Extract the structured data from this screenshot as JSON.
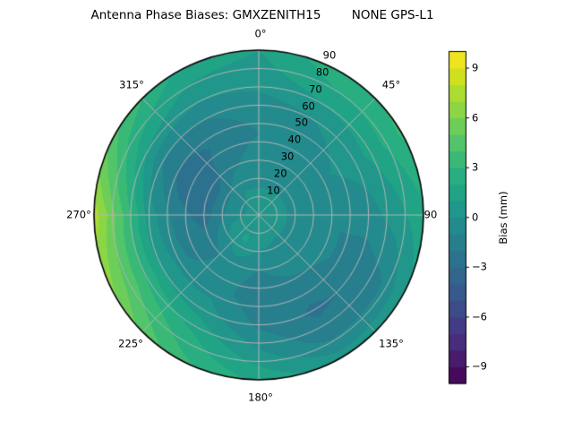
{
  "figure": {
    "title": "Antenna Phase Biases: GMXZENITH15        NONE GPS-L1"
  },
  "chart_data": {
    "type": "heatmap",
    "projection": "polar",
    "title": "Antenna Phase Biases: GMXZENITH15        NONE GPS-L1",
    "angle_tick_labels": [
      "0°",
      "45°",
      "90",
      "135°",
      "180°",
      "225°",
      "270°",
      "315°"
    ],
    "angle_tick_degrees": [
      0,
      45,
      90,
      135,
      180,
      225,
      270,
      315
    ],
    "radial_tick_labels": [
      "10",
      "20",
      "30",
      "40",
      "50",
      "60",
      "70",
      "80",
      "90"
    ],
    "radial_range": [
      0,
      90
    ],
    "grid": true,
    "legend_position": "none",
    "colorbar": {
      "label": "Bias (mm)",
      "tick_labels": [
        "9",
        "6",
        "3",
        "0",
        "−3",
        "−6",
        "−9"
      ],
      "tick_values": [
        9,
        6,
        3,
        0,
        -3,
        -6,
        -9
      ],
      "vmin": -10,
      "vmax": 10,
      "levels": 20,
      "colormap": "viridis"
    },
    "field": {
      "azimuth_deg": [
        0,
        30,
        60,
        90,
        120,
        150,
        180,
        210,
        240,
        270,
        300,
        330
      ],
      "zenith_deg": [
        0,
        15,
        30,
        45,
        60,
        75,
        90
      ],
      "bias_mm": [
        [
          0.5,
          0.0,
          -0.5,
          -1.0,
          -0.5,
          0.5,
          1.0
        ],
        [
          0.5,
          0.0,
          -0.5,
          -0.5,
          0.0,
          1.5,
          2.8
        ],
        [
          0.5,
          0.0,
          0.0,
          0.0,
          0.5,
          1.8,
          3.2
        ],
        [
          0.5,
          0.0,
          -0.5,
          -1.0,
          -0.5,
          0.5,
          1.8
        ],
        [
          0.5,
          0.0,
          -0.5,
          -1.0,
          -1.8,
          -1.2,
          0.8
        ],
        [
          0.5,
          0.0,
          -0.5,
          -1.5,
          -2.2,
          -1.5,
          0.5
        ],
        [
          0.5,
          0.3,
          -1.0,
          -1.8,
          -1.2,
          0.2,
          1.8
        ],
        [
          0.5,
          1.2,
          -0.5,
          -0.5,
          0.5,
          2.2,
          3.4
        ],
        [
          0.5,
          0.5,
          -1.5,
          -1.0,
          1.0,
          3.8,
          6.0
        ],
        [
          0.5,
          -0.5,
          -2.5,
          -1.5,
          0.5,
          4.2,
          7.6
        ],
        [
          0.5,
          -0.5,
          -2.8,
          -2.8,
          -1.0,
          1.8,
          4.2
        ],
        [
          0.5,
          0.0,
          -1.2,
          -1.8,
          -1.0,
          0.5,
          1.8
        ]
      ]
    },
    "colors": {
      "grid_line": "#b5b5b5",
      "outline": "#000000",
      "background": "#ffffff",
      "text": "#000000"
    }
  }
}
